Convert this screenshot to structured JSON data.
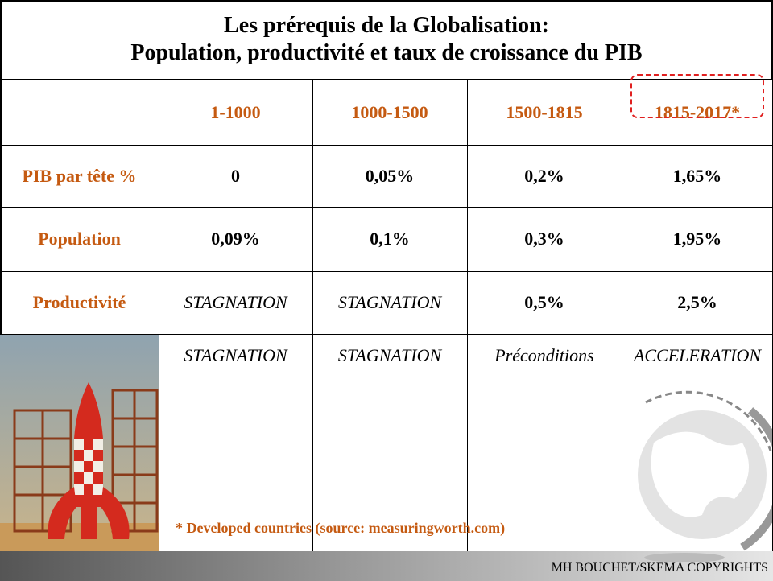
{
  "header": {
    "title_lines": [
      "Les prérequis de la Globalisation:",
      "Population, productivité et taux de croissance du PIB"
    ]
  },
  "table": {
    "columns": [
      "1-1000",
      "1000-1500",
      "1500-1815",
      "1815-2017*"
    ],
    "rows": [
      {
        "label": "PIB par tête %",
        "cells": [
          "0",
          "0,05%",
          "0,2%",
          "1,65%"
        ]
      },
      {
        "label": "Population",
        "cells": [
          "0,09%",
          "0,1%",
          "0,3%",
          "1,95%"
        ]
      },
      {
        "label": "Productivité",
        "cells": [
          "STAGNATION",
          "STAGNATION",
          "0,5%",
          "2,5%"
        ]
      },
      {
        "cells": [
          "STAGNATION",
          "STAGNATION",
          "Préconditions",
          "ACCELERATION"
        ]
      }
    ]
  },
  "footnote": "* Developed countries (source: measuringworth.com)",
  "copyright": "MH BOUCHET/SKEMA COPYRIGHTS"
}
